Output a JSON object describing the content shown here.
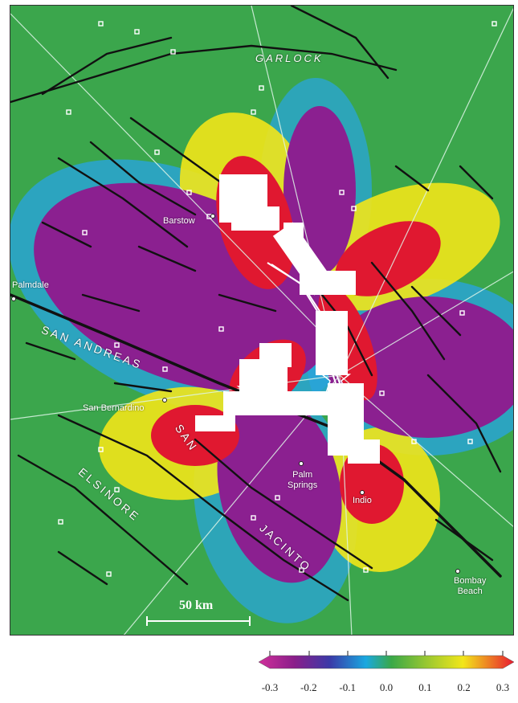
{
  "map": {
    "cities": [
      {
        "name": "Barstow"
      },
      {
        "name": "Palmdale"
      },
      {
        "name": "San Bernardino"
      },
      {
        "name": "Palm\nSprings"
      },
      {
        "name": "Indio"
      },
      {
        "name": "Bombay\nBeach"
      }
    ],
    "faults": {
      "garlock": "GARLOCK",
      "san_andreas": "SAN ANDREAS",
      "elsinore": "ELSINORE",
      "san": "SAN",
      "jacinto": "JACINTO"
    },
    "scale_bar_label": "50 km"
  },
  "colorbar": {
    "ticks": [
      "-0.3",
      "-0.2",
      "-0.1",
      "0.0",
      "0.1",
      "0.2",
      "0.3"
    ],
    "colors": [
      "#8a1f8a",
      "#3a3aa8",
      "#1aa8e0",
      "#3aa848",
      "#9ac830",
      "#f2e61a",
      "#e81a30"
    ]
  }
}
